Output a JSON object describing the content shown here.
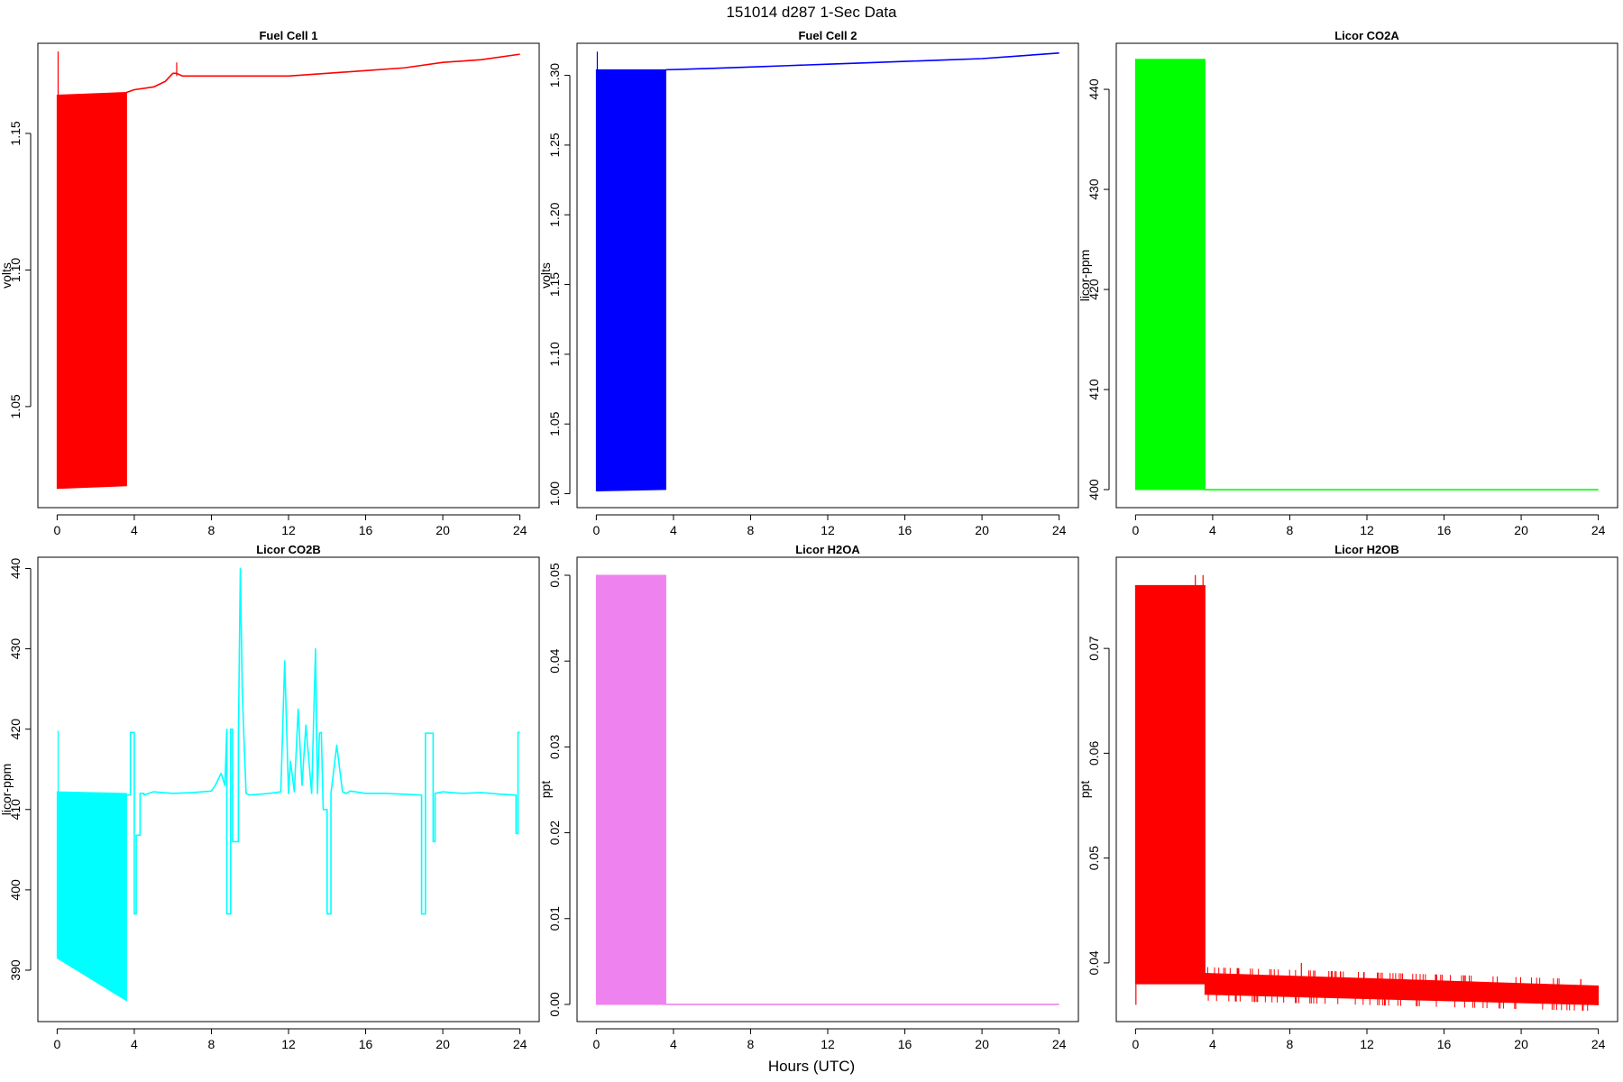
{
  "figure": {
    "suptitle": "151014   d287   1-Sec Data",
    "xlabel": "Hours (UTC)"
  },
  "chart_data": [
    {
      "type": "line",
      "title": "Fuel Cell 1",
      "ylabel": "volts",
      "color": "#ff0000",
      "xlim": [
        -1,
        25
      ],
      "ylim": [
        1.013,
        1.183
      ],
      "xticks": [
        0,
        4,
        8,
        12,
        16,
        20,
        24
      ],
      "yticks": [
        1.05,
        1.1,
        1.15
      ],
      "ytick_labels": [
        "1.05",
        "1.10",
        "1.15"
      ],
      "band": {
        "x0": 0,
        "x1": 3.6,
        "lower": [
          1.02,
          1.021
        ],
        "upper": [
          1.164,
          1.165
        ]
      },
      "series": [
        {
          "x": [
            3.6,
            4,
            5,
            5.6,
            6,
            6.2,
            6.5,
            7,
            8,
            10,
            12,
            14,
            16,
            18,
            20,
            22,
            24
          ],
          "y": [
            1.165,
            1.166,
            1.167,
            1.169,
            1.172,
            1.172,
            1.171,
            1.171,
            1.171,
            1.171,
            1.171,
            1.172,
            1.173,
            1.174,
            1.176,
            1.177,
            1.179
          ]
        }
      ],
      "spikes": [
        {
          "x": 0.05,
          "y0": 1.164,
          "y1": 1.18
        },
        {
          "x": 6.2,
          "y0": 1.171,
          "y1": 1.176
        }
      ]
    },
    {
      "type": "line",
      "title": "Fuel Cell 2",
      "ylabel": "volts",
      "color": "#0000ff",
      "xlim": [
        -1,
        25
      ],
      "ylim": [
        0.99,
        1.323
      ],
      "xticks": [
        0,
        4,
        8,
        12,
        16,
        20,
        24
      ],
      "yticks": [
        1.0,
        1.05,
        1.1,
        1.15,
        1.2,
        1.25,
        1.3
      ],
      "ytick_labels": [
        "1.00",
        "1.05",
        "1.10",
        "1.15",
        "1.20",
        "1.25",
        "1.30"
      ],
      "band": {
        "x0": 0,
        "x1": 3.6,
        "lower": [
          1.002,
          1.003
        ],
        "upper": [
          1.304,
          1.304
        ]
      },
      "series": [
        {
          "x": [
            3.6,
            6,
            8,
            10,
            12,
            14,
            16,
            18,
            20,
            22,
            24
          ],
          "y": [
            1.304,
            1.305,
            1.306,
            1.307,
            1.308,
            1.309,
            1.31,
            1.311,
            1.312,
            1.314,
            1.316
          ]
        }
      ],
      "spikes": [
        {
          "x": 0.05,
          "y0": 1.302,
          "y1": 1.317
        }
      ]
    },
    {
      "type": "line",
      "title": "Licor CO2A",
      "ylabel": "licor-ppm",
      "color": "#00ff00",
      "xlim": [
        -1,
        25
      ],
      "ylim": [
        398.2,
        444.6
      ],
      "xticks": [
        0,
        4,
        8,
        12,
        16,
        20,
        24
      ],
      "yticks": [
        400,
        410,
        420,
        430,
        440
      ],
      "ytick_labels": [
        "400",
        "410",
        "420",
        "430",
        "440"
      ],
      "band": {
        "x0": 0,
        "x1": 3.6,
        "lower": [
          400,
          400
        ],
        "upper": [
          443,
          443
        ]
      },
      "series": [
        {
          "x": [
            3.6,
            24
          ],
          "y": [
            400,
            400
          ]
        }
      ],
      "spikes": []
    },
    {
      "type": "line",
      "title": "Licor CO2B",
      "ylabel": "licor-ppm",
      "color": "#00ffff",
      "xlim": [
        -1,
        25
      ],
      "ylim": [
        383.6,
        441.4
      ],
      "xticks": [
        0,
        4,
        8,
        12,
        16,
        20,
        24
      ],
      "yticks": [
        390,
        400,
        410,
        420,
        430,
        440
      ],
      "ytick_labels": [
        "390",
        "400",
        "410",
        "420",
        "430",
        "440"
      ],
      "band": {
        "x0": 0,
        "x1": 3.6,
        "lower": [
          391.5,
          386.2
        ],
        "upper": [
          412.2,
          412.0
        ]
      },
      "series": [
        {
          "x": [
            3.6,
            3.8,
            3.8,
            4.0,
            4.0,
            4.1,
            4.1,
            4.3,
            4.3,
            4.5,
            4.5,
            5,
            6,
            7,
            8,
            8.2,
            8.5,
            8.7,
            8.8,
            8.8,
            9.0,
            9.0,
            9.1,
            9.1,
            9.4,
            9.4,
            9.5,
            9.6,
            9.7,
            9.8,
            10,
            11,
            11.6,
            11.8,
            12,
            12.1,
            12.3,
            12.5,
            12.7,
            12.9,
            13.2,
            13.4,
            13.5,
            13.6,
            13.7,
            13.8,
            14.0,
            14.0,
            14.2,
            14.2,
            14.5,
            14.8,
            15,
            15.2,
            16,
            17,
            18,
            18.9,
            18.9,
            19.1,
            19.1,
            19.5,
            19.5,
            19.6,
            19.6,
            20,
            21,
            22,
            23,
            23.8,
            23.8,
            23.9,
            23.9,
            24
          ],
          "y": [
            411.8,
            411.8,
            419.6,
            419.6,
            397.0,
            397.0,
            406.8,
            406.8,
            412.0,
            412.0,
            411.8,
            412.2,
            412.0,
            412.1,
            412.3,
            413.0,
            414.5,
            413.0,
            420.0,
            397.0,
            397.0,
            420.0,
            420.0,
            406.0,
            406.0,
            419.0,
            440.0,
            425.0,
            418.0,
            412.0,
            411.8,
            412.0,
            412.2,
            428.5,
            412.0,
            416.0,
            412.2,
            422.5,
            413.0,
            420.5,
            412.0,
            430.0,
            412.0,
            419.5,
            419.6,
            410.0,
            410.0,
            397.0,
            397.0,
            412.0,
            418.0,
            412.2,
            412.0,
            412.3,
            412.0,
            412.0,
            411.9,
            411.8,
            397.0,
            397.0,
            419.5,
            419.5,
            406.0,
            406.0,
            412.0,
            412.2,
            412.0,
            412.1,
            411.9,
            411.8,
            407.0,
            407.0,
            419.6,
            419.6
          ]
        }
      ],
      "spikes": [
        {
          "x": 0.05,
          "y0": 412.0,
          "y1": 419.8
        }
      ]
    },
    {
      "type": "line",
      "title": "Licor H2OA",
      "ylabel": "ppt",
      "color": "#ee82ee",
      "xlim": [
        -1,
        25
      ],
      "ylim": [
        -0.002,
        0.0521
      ],
      "xticks": [
        0,
        4,
        8,
        12,
        16,
        20,
        24
      ],
      "yticks": [
        0.0,
        0.01,
        0.02,
        0.03,
        0.04,
        0.05
      ],
      "ytick_labels": [
        "0.00",
        "0.01",
        "0.02",
        "0.03",
        "0.04",
        "0.05"
      ],
      "band": {
        "x0": 0,
        "x1": 3.6,
        "lower": [
          0,
          0
        ],
        "upper": [
          0.05,
          0.05
        ]
      },
      "series": [
        {
          "x": [
            3.6,
            24
          ],
          "y": [
            0,
            0
          ]
        }
      ],
      "spikes": []
    },
    {
      "type": "line",
      "title": "Licor H2OB",
      "ylabel": "ppt",
      "color": "#ff0000",
      "xlim": [
        -1,
        25
      ],
      "ylim": [
        0.0344,
        0.0787
      ],
      "xticks": [
        0,
        4,
        8,
        12,
        16,
        20,
        24
      ],
      "yticks": [
        0.04,
        0.05,
        0.06,
        0.07
      ],
      "ytick_labels": [
        "0.04",
        "0.05",
        "0.06",
        "0.07"
      ],
      "band": {
        "x0": 0,
        "x1": 3.6,
        "lower": [
          0.038,
          0.038
        ],
        "upper": [
          0.076,
          0.076
        ]
      },
      "series": [],
      "spikes": [
        {
          "x": 0.02,
          "y0": 0.036,
          "y1": 0.038
        },
        {
          "x": 3.1,
          "y0": 0.076,
          "y1": 0.077
        },
        {
          "x": 3.5,
          "y0": 0.076,
          "y1": 0.077
        },
        {
          "x": 8.6,
          "y0": 0.038,
          "y1": 0.04
        }
      ],
      "noise_band": {
        "x0": 3.6,
        "x1": 24,
        "lower_start": 0.037,
        "lower_end": 0.036,
        "upper_start": 0.039,
        "upper_end": 0.0378
      }
    }
  ]
}
